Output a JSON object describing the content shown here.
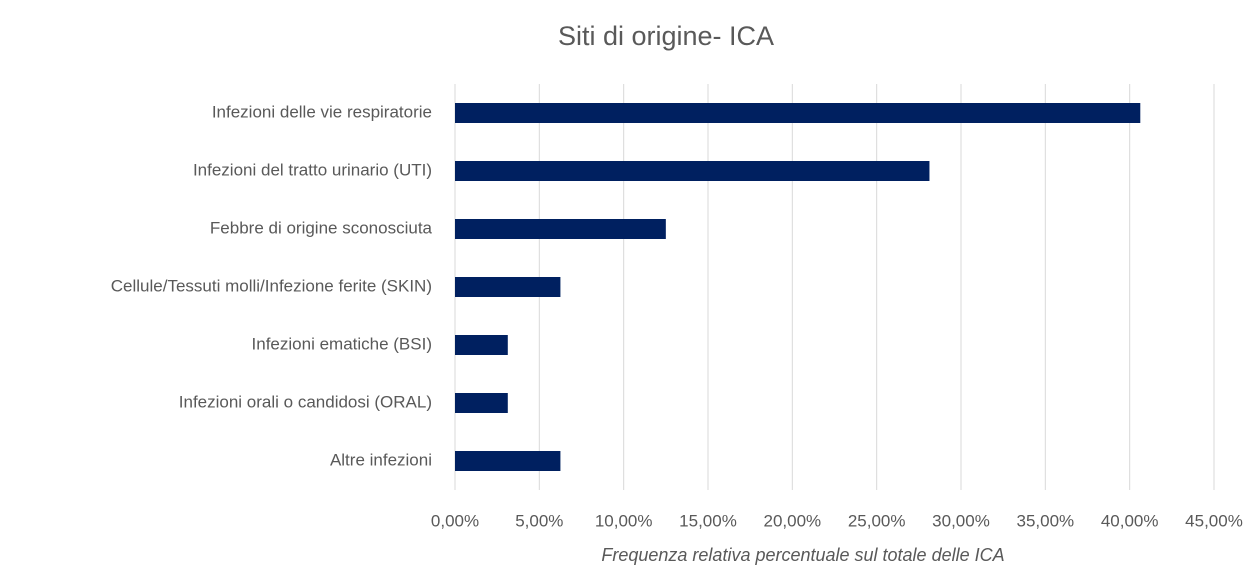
{
  "chart_data": {
    "type": "bar",
    "orientation": "horizontal",
    "title": "Siti di origine- ICA",
    "x_label": "Frequenza relativa percentuale sul totale delle ICA",
    "categories": [
      "Infezioni delle vie respiratorie",
      "Infezioni del tratto urinario (UTI)",
      "Febbre di origine sconosciuta",
      "Cellule/Tessuti molli/Infezione ferite (SKIN)",
      "Infezioni ematiche (BSI)",
      "Infezioni orali o candidosi (ORAL)",
      "Altre infezioni"
    ],
    "values": [
      40.63,
      28.13,
      12.5,
      6.25,
      3.13,
      3.13,
      6.25
    ],
    "color": "#002060",
    "xlim": [
      0,
      45
    ],
    "xticks": [
      {
        "value": 0,
        "label": "0,00%"
      },
      {
        "value": 5,
        "label": "5,00%"
      },
      {
        "value": 10,
        "label": "10,00%"
      },
      {
        "value": 15,
        "label": "15,00%"
      },
      {
        "value": 20,
        "label": "20,00%"
      },
      {
        "value": 25,
        "label": "25,00%"
      },
      {
        "value": 30,
        "label": "30,00%"
      },
      {
        "value": 35,
        "label": "35,00%"
      },
      {
        "value": 40,
        "label": "40,00%"
      },
      {
        "value": 45,
        "label": "45,00%"
      }
    ],
    "grid": true
  }
}
